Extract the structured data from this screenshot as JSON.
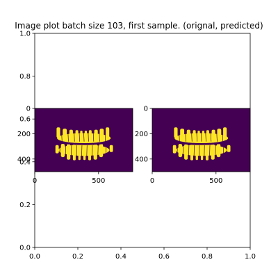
{
  "chart_data": [
    {
      "type": "line",
      "title": "Image plot batch size 103, first sample. (orignal, predicted)",
      "xlabel": "",
      "ylabel": "",
      "xlim": [
        0.0,
        1.0
      ],
      "ylim": [
        0.0,
        1.0
      ],
      "x_ticks": [
        "0.0",
        "0.2",
        "0.4",
        "0.6",
        "0.8",
        "1.0"
      ],
      "y_ticks": [
        "0.0",
        "0.2",
        "0.4",
        "0.6",
        "0.8",
        "1.0"
      ],
      "series": [],
      "grid": false
    },
    {
      "type": "heatmap",
      "subplot": "original",
      "colormap": "viridis",
      "background_color": "#440154",
      "foreground_color": "#fde725",
      "image_width": 768,
      "image_height": 500,
      "xlim": [
        0,
        768
      ],
      "ylim": [
        500,
        0
      ],
      "x_ticks": [
        "0",
        "500"
      ],
      "y_ticks": [
        "0",
        "200",
        "400"
      ]
    },
    {
      "type": "heatmap",
      "subplot": "predicted",
      "colormap": "viridis",
      "background_color": "#440154",
      "foreground_color": "#fde725",
      "image_width": 768,
      "image_height": 500,
      "xlim": [
        0,
        768
      ],
      "ylim": [
        500,
        0
      ],
      "x_ticks": [
        "0",
        "500"
      ],
      "y_ticks": [
        "0",
        "200",
        "400"
      ]
    }
  ]
}
